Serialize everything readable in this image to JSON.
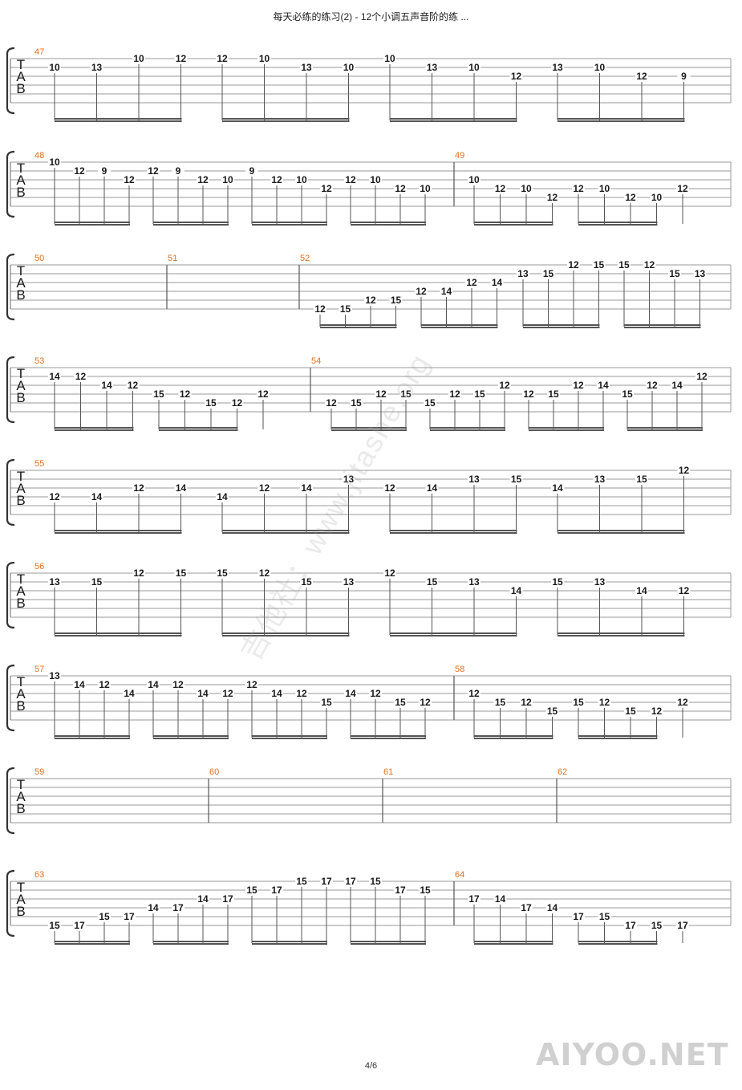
{
  "header": {
    "title": "每天必练的练习(2) - 12个小调五声音阶的练 ..."
  },
  "footer": {
    "page": "4/6"
  },
  "watermarks": {
    "diagonal": "吉他社：www.jitashe.org",
    "corner": "AIYOO.NET"
  },
  "tab_clef": [
    "T",
    "A",
    "B"
  ],
  "systems": [
    {
      "measures": [
        {
          "num": "47",
          "groups": [
            [
              [
                10,
                1
              ],
              [
                13,
                1
              ],
              [
                10,
                0
              ],
              [
                12,
                0
              ]
            ],
            [
              [
                12,
                0
              ],
              [
                10,
                0
              ],
              [
                13,
                1
              ],
              [
                10,
                1
              ]
            ],
            [
              [
                10,
                0
              ],
              [
                13,
                1
              ],
              [
                10,
                1
              ],
              [
                12,
                2
              ]
            ],
            [
              [
                13,
                1
              ],
              [
                10,
                1
              ],
              [
                12,
                2
              ],
              [
                9,
                2
              ]
            ]
          ]
        }
      ]
    },
    {
      "measures": [
        {
          "num": "48",
          "groups": [
            [
              [
                10,
                0
              ],
              [
                12,
                1
              ],
              [
                9,
                1
              ],
              [
                12,
                2
              ]
            ],
            [
              [
                12,
                1
              ],
              [
                9,
                1
              ],
              [
                12,
                2
              ],
              [
                10,
                2
              ]
            ],
            [
              [
                9,
                1
              ],
              [
                12,
                2
              ],
              [
                10,
                2
              ],
              [
                12,
                3
              ]
            ],
            [
              [
                12,
                2
              ],
              [
                10,
                2
              ],
              [
                12,
                3
              ],
              [
                10,
                3
              ]
            ]
          ]
        },
        {
          "num": "49",
          "groups": [
            [
              [
                10,
                2
              ],
              [
                12,
                3
              ],
              [
                10,
                3
              ],
              [
                12,
                4
              ]
            ],
            [
              [
                12,
                3
              ],
              [
                10,
                3
              ],
              [
                12,
                4
              ],
              [
                10,
                4
              ]
            ],
            [
              [
                12,
                3
              ]
            ]
          ]
        }
      ]
    },
    {
      "measures": [
        {
          "num": "50",
          "groups": []
        },
        {
          "num": "51",
          "groups": []
        },
        {
          "num": "52",
          "groups": [
            [
              [
                12,
                5
              ],
              [
                15,
                5
              ],
              [
                12,
                4
              ],
              [
                15,
                4
              ]
            ],
            [
              [
                12,
                3
              ],
              [
                14,
                3
              ],
              [
                12,
                2
              ],
              [
                14,
                2
              ]
            ],
            [
              [
                13,
                1
              ],
              [
                15,
                1
              ],
              [
                12,
                0
              ],
              [
                15,
                0
              ]
            ],
            [
              [
                15,
                0
              ],
              [
                12,
                0
              ],
              [
                15,
                1
              ],
              [
                13,
                1
              ]
            ]
          ]
        }
      ]
    },
    {
      "measures": [
        {
          "num": "53",
          "groups": [
            [
              [
                14,
                1
              ],
              [
                12,
                1
              ],
              [
                14,
                2
              ],
              [
                12,
                2
              ]
            ],
            [
              [
                15,
                3
              ],
              [
                12,
                3
              ],
              [
                15,
                4
              ],
              [
                12,
                4
              ]
            ],
            [
              [
                12,
                3
              ]
            ]
          ]
        },
        {
          "num": "54",
          "groups": [
            [
              [
                12,
                4
              ],
              [
                15,
                4
              ],
              [
                12,
                3
              ],
              [
                15,
                3
              ]
            ],
            [
              [
                15,
                4
              ],
              [
                12,
                3
              ],
              [
                15,
                3
              ],
              [
                12,
                2
              ]
            ],
            [
              [
                12,
                3
              ],
              [
                15,
                3
              ],
              [
                12,
                2
              ],
              [
                14,
                2
              ]
            ],
            [
              [
                15,
                3
              ],
              [
                12,
                2
              ],
              [
                14,
                2
              ],
              [
                12,
                1
              ]
            ]
          ]
        }
      ]
    },
    {
      "measures": [
        {
          "num": "55",
          "groups": [
            [
              [
                12,
                3
              ],
              [
                14,
                3
              ],
              [
                12,
                2
              ],
              [
                14,
                2
              ]
            ],
            [
              [
                14,
                3
              ],
              [
                12,
                2
              ],
              [
                14,
                2
              ],
              [
                13,
                1
              ]
            ],
            [
              [
                12,
                2
              ],
              [
                14,
                2
              ],
              [
                13,
                1
              ],
              [
                15,
                1
              ]
            ],
            [
              [
                14,
                2
              ],
              [
                13,
                1
              ],
              [
                15,
                1
              ],
              [
                12,
                0
              ]
            ]
          ]
        }
      ]
    },
    {
      "measures": [
        {
          "num": "56",
          "groups": [
            [
              [
                13,
                1
              ],
              [
                15,
                1
              ],
              [
                12,
                0
              ],
              [
                15,
                0
              ]
            ],
            [
              [
                15,
                0
              ],
              [
                12,
                0
              ],
              [
                15,
                1
              ],
              [
                13,
                1
              ]
            ],
            [
              [
                12,
                0
              ],
              [
                15,
                1
              ],
              [
                13,
                1
              ],
              [
                14,
                2
              ]
            ],
            [
              [
                15,
                1
              ],
              [
                13,
                1
              ],
              [
                14,
                2
              ],
              [
                12,
                2
              ]
            ]
          ]
        }
      ]
    },
    {
      "measures": [
        {
          "num": "57",
          "groups": [
            [
              [
                13,
                0
              ],
              [
                14,
                1
              ],
              [
                12,
                1
              ],
              [
                14,
                2
              ]
            ],
            [
              [
                14,
                1
              ],
              [
                12,
                1
              ],
              [
                14,
                2
              ],
              [
                12,
                2
              ]
            ],
            [
              [
                12,
                1
              ],
              [
                14,
                2
              ],
              [
                12,
                2
              ],
              [
                15,
                3
              ]
            ],
            [
              [
                14,
                2
              ],
              [
                12,
                2
              ],
              [
                15,
                3
              ],
              [
                12,
                3
              ]
            ]
          ]
        },
        {
          "num": "58",
          "groups": [
            [
              [
                12,
                2
              ],
              [
                15,
                3
              ],
              [
                12,
                3
              ],
              [
                15,
                4
              ]
            ],
            [
              [
                15,
                3
              ],
              [
                12,
                3
              ],
              [
                15,
                4
              ],
              [
                12,
                4
              ]
            ],
            [
              [
                12,
                3
              ]
            ]
          ]
        }
      ]
    },
    {
      "measures": [
        {
          "num": "59",
          "groups": []
        },
        {
          "num": "60",
          "groups": []
        },
        {
          "num": "61",
          "groups": []
        },
        {
          "num": "62",
          "groups": []
        }
      ]
    },
    {
      "measures": [
        {
          "num": "63",
          "groups": [
            [
              [
                15,
                5
              ],
              [
                17,
                5
              ],
              [
                15,
                4
              ],
              [
                17,
                4
              ]
            ],
            [
              [
                14,
                3
              ],
              [
                17,
                3
              ],
              [
                14,
                2
              ],
              [
                17,
                2
              ]
            ],
            [
              [
                15,
                1
              ],
              [
                17,
                1
              ],
              [
                15,
                0
              ],
              [
                17,
                0
              ]
            ],
            [
              [
                17,
                0
              ],
              [
                15,
                0
              ],
              [
                17,
                1
              ],
              [
                15,
                1
              ]
            ]
          ]
        },
        {
          "num": "64",
          "groups": [
            [
              [
                17,
                2
              ],
              [
                14,
                2
              ],
              [
                17,
                3
              ],
              [
                14,
                3
              ]
            ],
            [
              [
                17,
                4
              ],
              [
                15,
                4
              ],
              [
                17,
                5
              ],
              [
                15,
                5
              ]
            ],
            [
              [
                17,
                5
              ]
            ]
          ]
        }
      ]
    }
  ]
}
